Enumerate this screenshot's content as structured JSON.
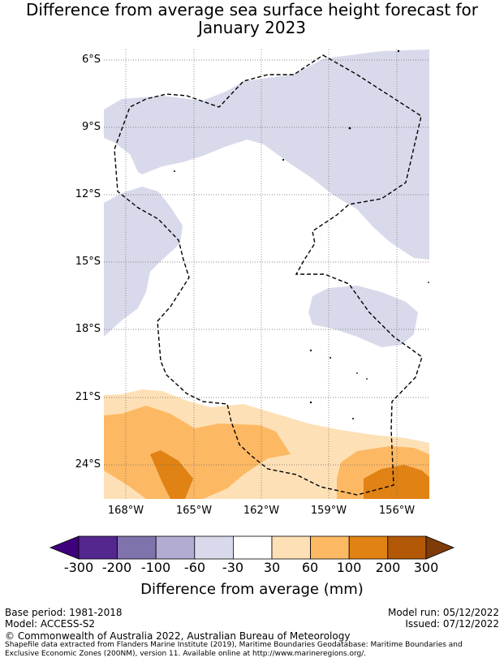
{
  "title_line1": "Difference from average sea surface height forecast for",
  "title_line2": "January 2023",
  "lat_labels": [
    "6°S",
    "9°S",
    "12°S",
    "15°S",
    "18°S",
    "21°S",
    "24°S"
  ],
  "lon_labels": [
    "168°W",
    "165°W",
    "162°W",
    "159°W",
    "156°W"
  ],
  "colorbar": {
    "ticks": [
      "-300",
      "-200",
      "-100",
      "-60",
      "-30",
      "30",
      "60",
      "100",
      "200",
      "300"
    ],
    "colors": [
      "#3f007d",
      "#54278f",
      "#8073ac",
      "#b2abd2",
      "#d8daeb",
      "#ffffff",
      "#fee0b6",
      "#fdb863",
      "#e08214",
      "#b35806",
      "#7f3b08"
    ],
    "title": "Difference from average (mm)"
  },
  "footer": {
    "base_period": "Base period: 1981-2018",
    "model": "Model: ACCESS-S2",
    "model_run": "Model run: 05/12/2022",
    "issued": "Issued: 07/12/2022",
    "copyright": "© Commonwealth of Australia 2022, Australian Bureau of Meteorology",
    "shapefile_line1": "Shapefile data extracted from Flanders Marine Institute (2019), Maritime Boundaries Geodatabase: Maritime Boundaries and",
    "shapefile_line2": "Exclusive Economic Zones (200NM), version 11. Available online at http://www.marineregions.org/."
  }
}
